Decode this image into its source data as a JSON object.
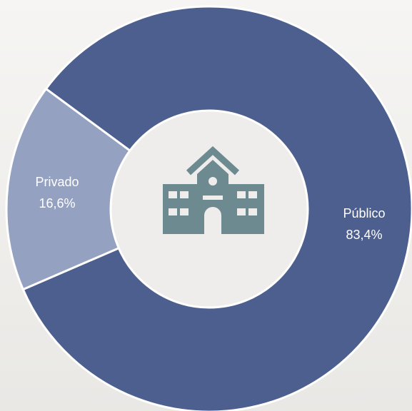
{
  "chart_data": {
    "type": "donut",
    "categories": [
      "Público",
      "Privado"
    ],
    "values": [
      83.4,
      16.6
    ],
    "value_labels": [
      "83,4%",
      "16,6%"
    ],
    "colors": [
      "#4c5f8f",
      "#95a1c1"
    ]
  }
}
